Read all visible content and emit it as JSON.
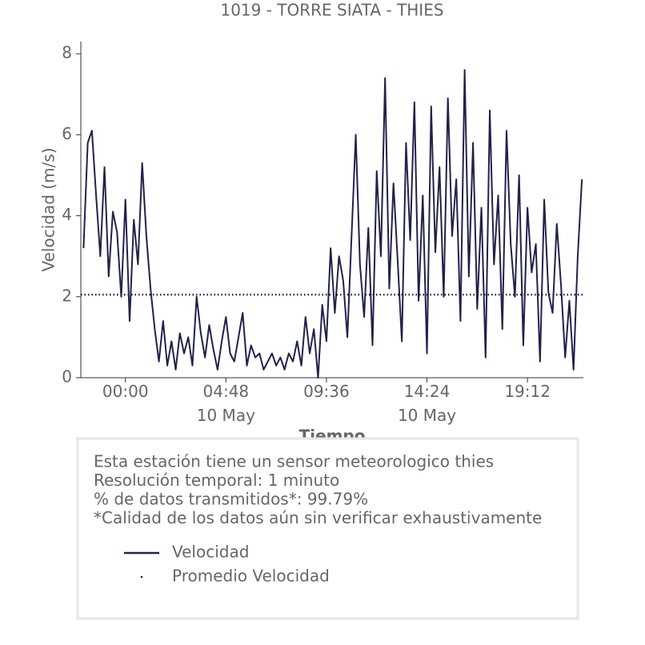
{
  "chart_data": {
    "type": "line",
    "title": "1019 - TORRE SIATA - THIES",
    "y_label": "Velocidad (m/s)",
    "x_label": "Tiempo",
    "xlim": [
      -2.13,
      21.87
    ],
    "xticks": [
      {
        "value": 0,
        "label": "00:00"
      },
      {
        "value": 4.8,
        "label": "04:48\n10 May"
      },
      {
        "value": 9.6,
        "label": "09:36"
      },
      {
        "value": 14.4,
        "label": "14:24\n10 May"
      },
      {
        "value": 19.2,
        "label": "19:12"
      }
    ],
    "ylim": [
      0,
      8.3
    ],
    "yticks": [
      0,
      2,
      4,
      6,
      8
    ],
    "x": [
      -2.0,
      -1.8,
      -1.6,
      -1.4,
      -1.2,
      -1.0,
      -0.8,
      -0.6,
      -0.4,
      -0.2,
      0,
      0.2,
      0.4,
      0.6,
      0.8,
      1.0,
      1.2,
      1.4,
      1.6,
      1.8,
      2.0,
      2.2,
      2.4,
      2.6,
      2.8,
      3.0,
      3.2,
      3.4,
      3.6,
      3.8,
      4.0,
      4.2,
      4.4,
      4.6,
      4.8,
      5.0,
      5.2,
      5.4,
      5.6,
      5.8,
      6.0,
      6.2,
      6.4,
      6.6,
      6.8,
      7.0,
      7.2,
      7.4,
      7.6,
      7.8,
      8.0,
      8.2,
      8.4,
      8.6,
      8.8,
      9.0,
      9.2,
      9.4,
      9.6,
      9.8,
      10.0,
      10.2,
      10.4,
      10.6,
      10.8,
      11.0,
      11.2,
      11.4,
      11.6,
      11.8,
      12.0,
      12.2,
      12.4,
      12.6,
      12.8,
      13.0,
      13.2,
      13.4,
      13.6,
      13.8,
      14.0,
      14.2,
      14.4,
      14.6,
      14.8,
      15.0,
      15.2,
      15.4,
      15.6,
      15.8,
      16.0,
      16.2,
      16.4,
      16.6,
      16.8,
      17.0,
      17.2,
      17.4,
      17.6,
      17.8,
      18.0,
      18.2,
      18.4,
      18.6,
      18.8,
      19.0,
      19.2,
      19.4,
      19.6,
      19.8,
      20.0,
      20.2,
      20.4,
      20.6,
      20.8,
      21.0,
      21.2,
      21.4,
      21.6,
      21.8
    ],
    "series": [
      {
        "name": "Velocidad",
        "color": "#20224a",
        "values": [
          3.2,
          5.8,
          6.1,
          4.5,
          3.0,
          5.2,
          2.5,
          4.1,
          3.6,
          2.0,
          4.4,
          1.4,
          3.9,
          2.8,
          5.3,
          3.5,
          2.2,
          1.2,
          0.4,
          1.4,
          0.3,
          0.9,
          0.2,
          1.1,
          0.6,
          1.0,
          0.3,
          2.0,
          1.1,
          0.5,
          1.3,
          0.7,
          0.2,
          0.9,
          1.5,
          0.6,
          0.4,
          1.0,
          1.6,
          0.3,
          0.8,
          0.5,
          0.6,
          0.2,
          0.4,
          0.6,
          0.3,
          0.5,
          0.2,
          0.6,
          0.4,
          0.9,
          0.3,
          1.5,
          0.6,
          1.2,
          0.0,
          1.8,
          0.9,
          3.2,
          1.6,
          3.0,
          2.4,
          1.0,
          3.5,
          6.0,
          2.8,
          1.5,
          3.7,
          0.8,
          5.1,
          3.0,
          7.4,
          2.2,
          4.8,
          2.9,
          0.9,
          5.8,
          3.4,
          6.8,
          1.9,
          4.5,
          0.6,
          6.7,
          3.1,
          5.2,
          2.0,
          6.9,
          3.5,
          4.9,
          1.4,
          7.6,
          2.5,
          5.8,
          1.7,
          4.2,
          0.5,
          6.6,
          2.8,
          4.5,
          1.2,
          6.1,
          3.3,
          2.0,
          5.0,
          0.8,
          4.2,
          2.6,
          3.3,
          0.4,
          4.4,
          2.1,
          1.6,
          3.8,
          2.3,
          0.5,
          1.9,
          0.2,
          3.0,
          4.9
        ]
      }
    ],
    "mean_line": {
      "name": "Promedio Velocidad",
      "value": 2.05,
      "color": "#20224a"
    },
    "info": [
      "Esta estación tiene un sensor meteorologico thies",
      "Resolución temporal: 1 minuto",
      "% de datos transmitidos*: 99.79%",
      "*Calidad de los datos aún sin verificar exhaustivamente"
    ]
  }
}
